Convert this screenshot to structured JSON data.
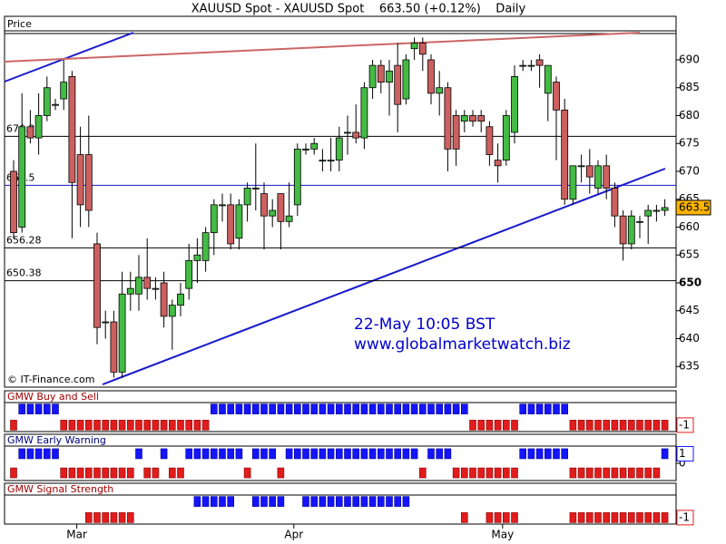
{
  "chart_data": [
    {
      "type": "candlestick",
      "title": "XAUUSD Spot - XAUUSD Spot    663.50 (+0.12%)    Daily",
      "y_label": "Price",
      "source": "© IT-Finance.com",
      "annotations": [
        "22-May 10:05 BST",
        "www.globalmarketwatch.biz"
      ],
      "categories": [
        null,
        null,
        null,
        null,
        null,
        null,
        null,
        null,
        "Mar",
        null,
        null,
        null,
        null,
        null,
        null,
        null,
        null,
        null,
        null,
        null,
        null,
        null,
        null,
        null,
        null,
        null,
        null,
        null,
        null,
        null,
        null,
        null,
        null,
        null,
        "Apr",
        null,
        null,
        null,
        null,
        null,
        null,
        null,
        null,
        null,
        null,
        null,
        null,
        null,
        null,
        null,
        null,
        null,
        null,
        null,
        null,
        null,
        null,
        null,
        null,
        "May",
        null,
        null,
        null,
        null,
        null,
        null,
        null,
        null,
        null,
        null,
        null,
        null,
        null,
        null,
        null,
        null,
        null,
        null,
        null
      ],
      "open": [
        670,
        660,
        678,
        676,
        680,
        682,
        683,
        687,
        673,
        673,
        657,
        643,
        643,
        634,
        648,
        648,
        651,
        649,
        650,
        644,
        646,
        649,
        654,
        654,
        659,
        664,
        664,
        658,
        664,
        667,
        666,
        662,
        666,
        661,
        664,
        674,
        674,
        672,
        672,
        672,
        677,
        677,
        676,
        685,
        689,
        686,
        689,
        683,
        692,
        693,
        690,
        684,
        685,
        680,
        679,
        680,
        680,
        678,
        672,
        672,
        677,
        689,
        689,
        690,
        684,
        686,
        681,
        665,
        671,
        671,
        667,
        671,
        667,
        662,
        657,
        661,
        662,
        663,
        663
      ],
      "high": [
        672,
        684,
        681,
        684,
        687,
        683,
        690,
        688,
        678,
        680,
        659,
        645,
        645,
        652,
        652,
        655,
        658,
        651,
        652,
        647,
        650,
        657,
        658,
        660,
        665,
        666,
        666,
        665,
        668,
        675,
        668,
        665,
        666,
        668,
        675,
        675,
        676,
        674,
        676,
        678,
        680,
        682,
        686,
        690,
        690,
        690,
        693,
        691,
        694,
        694,
        691,
        688,
        686,
        681,
        681,
        681,
        681,
        679,
        675,
        681,
        689,
        690,
        690,
        691,
        689,
        687,
        683,
        671,
        673,
        674,
        672,
        673,
        668,
        663,
        663,
        662,
        664,
        664,
        665
      ],
      "low": [
        658,
        659,
        675,
        673,
        679,
        681,
        681,
        658,
        660,
        660,
        639,
        640,
        633,
        633,
        645,
        645,
        647,
        647,
        642,
        638,
        644,
        647,
        650,
        652,
        655,
        661,
        656,
        656,
        661,
        663,
        656,
        660,
        656,
        660,
        662,
        673,
        673,
        670,
        670,
        670,
        673,
        675,
        674,
        683,
        684,
        680,
        677,
        682,
        690,
        688,
        682,
        680,
        670,
        671,
        677,
        678,
        677,
        671,
        668,
        671,
        675,
        688,
        688,
        685,
        679,
        672,
        664,
        664,
        668,
        666,
        666,
        665,
        660,
        654,
        656,
        658,
        657,
        661,
        662
      ],
      "close": [
        659,
        678,
        676,
        680,
        685,
        682,
        686,
        668,
        664,
        663,
        642,
        643,
        634,
        648,
        649,
        651,
        649,
        649,
        644,
        646,
        648,
        654,
        655,
        659,
        664,
        664,
        657,
        664,
        667,
        667,
        662,
        663,
        661,
        662,
        674,
        674,
        675,
        672,
        672,
        676,
        677,
        676,
        685,
        689,
        686,
        688,
        682,
        690,
        693,
        691,
        684,
        685,
        674,
        674,
        680,
        679,
        679,
        673,
        671,
        680,
        687,
        689,
        689,
        689,
        689,
        681,
        665,
        671,
        671,
        669,
        671,
        667,
        662,
        657,
        662,
        661,
        663,
        663,
        663.5
      ],
      "up_color": "#44bb44",
      "down_color": "#cc6060",
      "ylim": [
        631.3,
        697.8
      ],
      "yticks": [
        635,
        640,
        645,
        650,
        655,
        660,
        665,
        670,
        675,
        680,
        685,
        690
      ],
      "levels": [
        676.28,
        667.5,
        656.28,
        650.38
      ],
      "last_value": 663.5
    },
    {
      "type": "signal",
      "title": "GMW Buy and Sell",
      "ylim": [
        -1.8,
        1.8
      ],
      "current_value": -1,
      "values": [
        -1,
        1,
        1,
        1,
        1,
        1,
        -1,
        -1,
        -1,
        -1,
        -1,
        -1,
        -1,
        -1,
        -1,
        -1,
        -1,
        -1,
        -1,
        -1,
        -1,
        -1,
        -1,
        -1,
        1,
        1,
        1,
        1,
        1,
        1,
        1,
        1,
        1,
        1,
        1,
        1,
        1,
        1,
        1,
        1,
        1,
        1,
        1,
        1,
        1,
        1,
        1,
        1,
        1,
        1,
        1,
        1,
        1,
        1,
        1,
        -1,
        -1,
        -1,
        -1,
        -1,
        -1,
        1,
        1,
        1,
        1,
        1,
        1,
        -1,
        -1,
        -1,
        -1,
        -1,
        -1,
        -1,
        -1,
        -1,
        -1,
        -1,
        -1
      ]
    },
    {
      "type": "signal",
      "title": "GMW Early Warning",
      "ylim": [
        -1.8,
        1.8
      ],
      "current_value": 1,
      "yticks": [
        0
      ],
      "values": [
        -1,
        1,
        1,
        1,
        1,
        1,
        -1,
        -1,
        -1,
        -1,
        -1,
        -1,
        -1,
        -1,
        -1,
        1,
        -1,
        -1,
        1,
        -1,
        -1,
        1,
        1,
        1,
        1,
        1,
        1,
        1,
        -1,
        1,
        1,
        1,
        -1,
        1,
        1,
        1,
        1,
        1,
        1,
        1,
        1,
        1,
        1,
        1,
        1,
        1,
        1,
        1,
        1,
        -1,
        1,
        1,
        1,
        -1,
        -1,
        -1,
        -1,
        -1,
        -1,
        -1,
        -1,
        1,
        1,
        1,
        1,
        1,
        1,
        -1,
        -1,
        -1,
        -1,
        -1,
        -1,
        -1,
        -1,
        -1,
        -1,
        -1,
        1
      ]
    },
    {
      "type": "signal",
      "title": "GMW Signal Strength",
      "ylim": [
        -1.8,
        1.8
      ],
      "current_value": -1,
      "values": [
        0,
        0,
        0,
        0,
        0,
        0,
        0,
        0,
        0,
        -1,
        -1,
        -1,
        -1,
        -1,
        -1,
        0,
        0,
        0,
        0,
        0,
        0,
        0,
        1,
        1,
        1,
        1,
        1,
        0,
        0,
        1,
        1,
        1,
        1,
        0,
        0,
        1,
        1,
        1,
        1,
        1,
        1,
        1,
        1,
        1,
        1,
        1,
        1,
        1,
        0,
        0,
        0,
        0,
        0,
        0,
        -1,
        0,
        0,
        -1,
        -1,
        -1,
        -1,
        0,
        0,
        0,
        0,
        0,
        0,
        -1,
        -1,
        -1,
        -1,
        -1,
        -1,
        -1,
        -1,
        -1,
        -1,
        -1,
        -1
      ]
    }
  ]
}
